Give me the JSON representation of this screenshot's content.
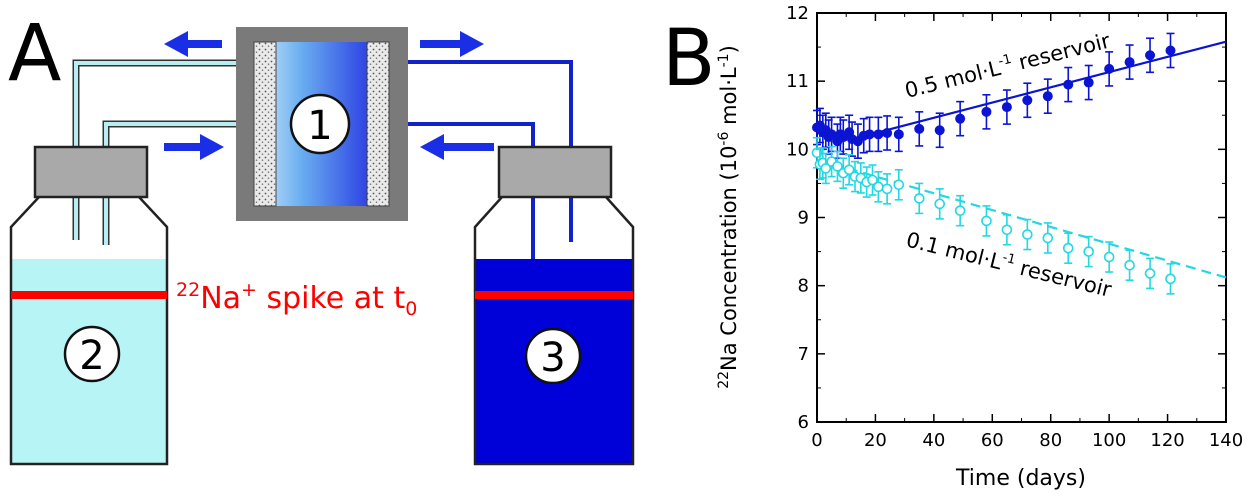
{
  "panel_a": {
    "label": "A",
    "cell_number": "1",
    "left_bottle_number": "2",
    "right_bottle_number": "3",
    "spike_text": {
      "isotope_mass": "22",
      "element": "Na",
      "charge": "+",
      "middle": " spike at t",
      "time_subscript": "0"
    },
    "colors": {
      "light_solution": "#b7f4f6",
      "dark_solution": "#0000d8",
      "spike_line": "#ff0000",
      "cap": "#a9a9a9",
      "cell_frame": "#7a7a7a",
      "arrow": "#1a2ee6",
      "tube_light": "#b8eef2",
      "tube_dark": "#1122c8"
    },
    "icons": [
      "arrow-left-icon",
      "arrow-right-icon"
    ]
  },
  "panel_b": {
    "label": "B",
    "chart_data": {
      "type": "scatter",
      "xlabel": "Time (days)",
      "ylabel": {
        "isotope_mass": "22",
        "main": "Na Concentration (10",
        "exp1": "-6",
        "mid": " mol·L",
        "exp2": "-1",
        "end": ")"
      },
      "xlim": [
        0,
        140
      ],
      "ylim": [
        6,
        12
      ],
      "xticks": [
        0,
        20,
        40,
        60,
        80,
        100,
        120,
        140
      ],
      "yticks": [
        6,
        7,
        8,
        9,
        10,
        11,
        12
      ],
      "grid": false,
      "series": [
        {
          "label_main": "0.5 mol·L",
          "label_exp": "-1",
          "label_tail": " reservoir",
          "color": "#0a14d2",
          "marker": "filled-circle",
          "x": [
            0,
            1,
            2,
            3,
            4,
            5,
            7,
            8,
            9,
            11,
            12,
            14,
            16,
            18,
            21,
            24,
            28,
            35,
            42,
            49,
            58,
            65,
            72,
            79,
            86,
            93,
            100,
            107,
            114,
            121
          ],
          "y": [
            10.32,
            10.35,
            10.25,
            10.28,
            10.18,
            10.22,
            10.12,
            10.22,
            10.18,
            10.25,
            10.15,
            10.12,
            10.2,
            10.22,
            10.22,
            10.24,
            10.22,
            10.3,
            10.28,
            10.45,
            10.55,
            10.62,
            10.72,
            10.78,
            10.95,
            10.98,
            11.18,
            11.28,
            11.38,
            11.45
          ],
          "error": 0.25,
          "fit": {
            "style": "solid",
            "x": [
              0,
              12,
              140
            ],
            "y": [
              10.25,
              10.15,
              11.58
            ]
          }
        },
        {
          "label_main": "0.1 mol·L",
          "label_exp": "-1",
          "label_tail": " reservoir",
          "color": "#22d8e2",
          "marker": "open-circle",
          "x": [
            0,
            1,
            2,
            3,
            5,
            7,
            9,
            11,
            13,
            15,
            17,
            19,
            21,
            24,
            28,
            35,
            42,
            49,
            58,
            65,
            72,
            79,
            86,
            93,
            100,
            107,
            114,
            121
          ],
          "y": [
            9.95,
            9.78,
            9.8,
            9.72,
            9.82,
            9.75,
            9.65,
            9.7,
            9.6,
            9.58,
            9.52,
            9.55,
            9.45,
            9.42,
            9.48,
            9.28,
            9.2,
            9.1,
            8.95,
            8.82,
            8.75,
            8.7,
            8.55,
            8.5,
            8.42,
            8.3,
            8.18,
            8.1
          ],
          "error": 0.22,
          "fit": {
            "style": "dashed",
            "x": [
              0,
              140
            ],
            "y": [
              9.85,
              8.12
            ]
          }
        }
      ]
    }
  }
}
